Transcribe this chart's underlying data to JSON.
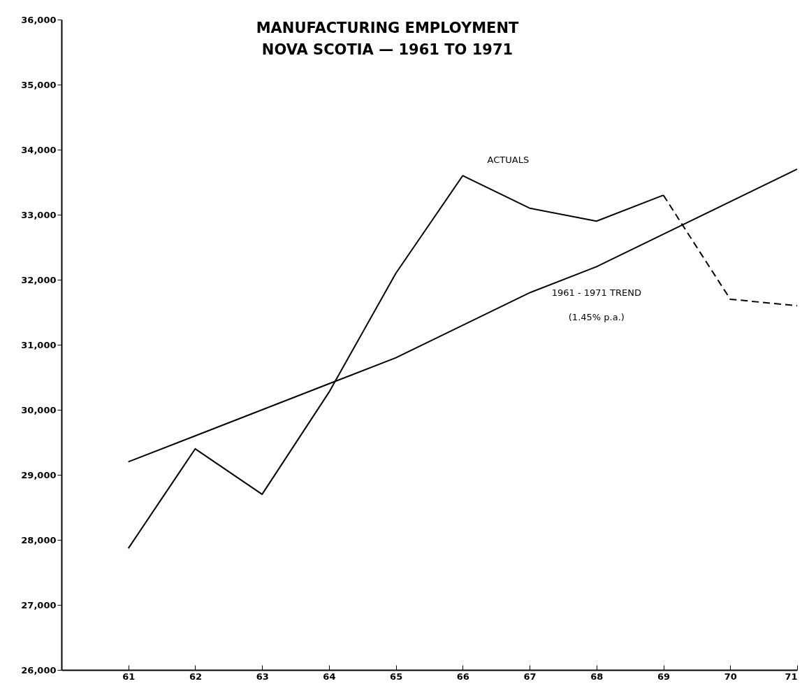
{
  "chart_data": {
    "type": "line",
    "title": "MANUFACTURING EMPLOYMENT",
    "subtitle": "NOVA SCOTIA — 1961 TO 1971",
    "xlim": [
      60,
      71
    ],
    "xticks": [
      61,
      62,
      63,
      64,
      65,
      66,
      67,
      68,
      69,
      70,
      71
    ],
    "ylim": [
      26000,
      36000
    ],
    "yticks": [
      {
        "value": 26000,
        "label": "26,000"
      },
      {
        "value": 27000,
        "label": "27,000"
      },
      {
        "value": 28000,
        "label": "28,000"
      },
      {
        "value": 29000,
        "label": "29,000"
      },
      {
        "value": 30000,
        "label": "30,000"
      },
      {
        "value": 31000,
        "label": "31,000"
      },
      {
        "value": 32000,
        "label": "32,000"
      },
      {
        "value": 33000,
        "label": "33,000"
      },
      {
        "value": 34000,
        "label": "34,000"
      },
      {
        "value": 35000,
        "label": "35,000"
      },
      {
        "value": 36000,
        "label": "36,000"
      }
    ],
    "series": [
      {
        "name": "ACTUALS",
        "color": "#000000",
        "line_style": "solid",
        "x": [
          61,
          62,
          63,
          64,
          65,
          66,
          67,
          68,
          69
        ],
        "values": [
          27870,
          29400,
          28700,
          30270,
          32100,
          33600,
          33100,
          32900,
          33300
        ]
      },
      {
        "color": "#000000",
        "line_style": "dashed",
        "x": [
          69,
          70,
          71
        ],
        "values": [
          33300,
          31700,
          31600
        ]
      },
      {
        "name": "1961 - 1971 TREND",
        "color": "#000000",
        "line_style": "solid",
        "x": [
          61,
          62,
          63,
          64,
          65,
          66,
          67,
          68,
          69,
          70,
          71
        ],
        "values": [
          29200,
          29600,
          30000,
          30400,
          30800,
          31300,
          31800,
          32200,
          32700,
          33200,
          33700
        ]
      }
    ],
    "annotations": [
      "(1.45% p.a.)"
    ]
  }
}
